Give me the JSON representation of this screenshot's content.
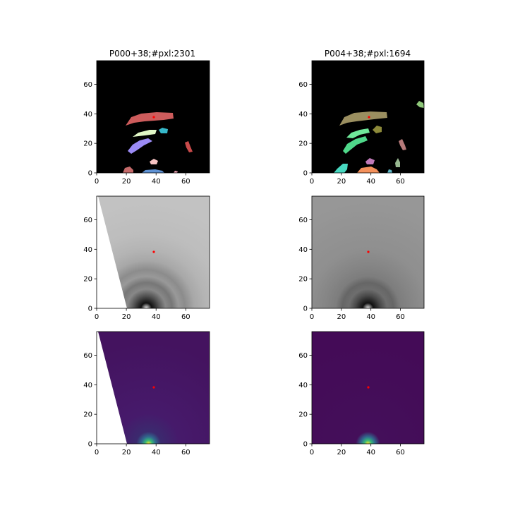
{
  "chart_data": [
    {
      "type": "heatmap",
      "title": "P000+38;#pxl:2301",
      "xlim": [
        0,
        76
      ],
      "ylim": [
        0,
        76
      ],
      "xticks": [
        0,
        20,
        40,
        60
      ],
      "yticks": [
        0,
        20,
        40,
        60
      ],
      "colormap": "segmentation",
      "marker": {
        "x": 38,
        "y": 38,
        "color": "#ff0000"
      }
    },
    {
      "type": "heatmap",
      "title": "P004+38;#pxl:1694",
      "xlim": [
        0,
        76
      ],
      "ylim": [
        0,
        76
      ],
      "xticks": [
        0,
        20,
        40,
        60
      ],
      "yticks": [
        0,
        20,
        40,
        60
      ],
      "colormap": "segmentation",
      "marker": {
        "x": 39,
        "y": 38,
        "color": "#ff0000"
      }
    },
    {
      "type": "heatmap",
      "title": "",
      "xlim": [
        0,
        76
      ],
      "ylim": [
        0,
        76
      ],
      "xticks": [
        0,
        20,
        40,
        60
      ],
      "yticks": [
        0,
        20,
        40,
        60
      ],
      "colormap": "gray",
      "marker": {
        "x": 38,
        "y": 38,
        "color": "#ff0000"
      }
    },
    {
      "type": "heatmap",
      "title": "",
      "xlim": [
        0,
        76
      ],
      "ylim": [
        0,
        76
      ],
      "xticks": [
        0,
        20,
        40,
        60
      ],
      "yticks": [
        0,
        20,
        40,
        60
      ],
      "colormap": "gray",
      "marker": {
        "x": 39,
        "y": 38,
        "color": "#ff0000"
      }
    },
    {
      "type": "heatmap",
      "title": "",
      "xlim": [
        0,
        76
      ],
      "ylim": [
        0,
        76
      ],
      "xticks": [
        0,
        20,
        40,
        60
      ],
      "yticks": [
        0,
        20,
        40,
        60
      ],
      "colormap": "viridis",
      "marker": {
        "x": 38,
        "y": 38,
        "color": "#ff0000"
      }
    },
    {
      "type": "heatmap",
      "title": "",
      "xlim": [
        0,
        76
      ],
      "ylim": [
        0,
        76
      ],
      "xticks": [
        0,
        20,
        40,
        60
      ],
      "yticks": [
        0,
        20,
        40,
        60
      ],
      "colormap": "viridis",
      "marker": {
        "x": 39,
        "y": 38,
        "color": "#ff0000"
      }
    }
  ]
}
